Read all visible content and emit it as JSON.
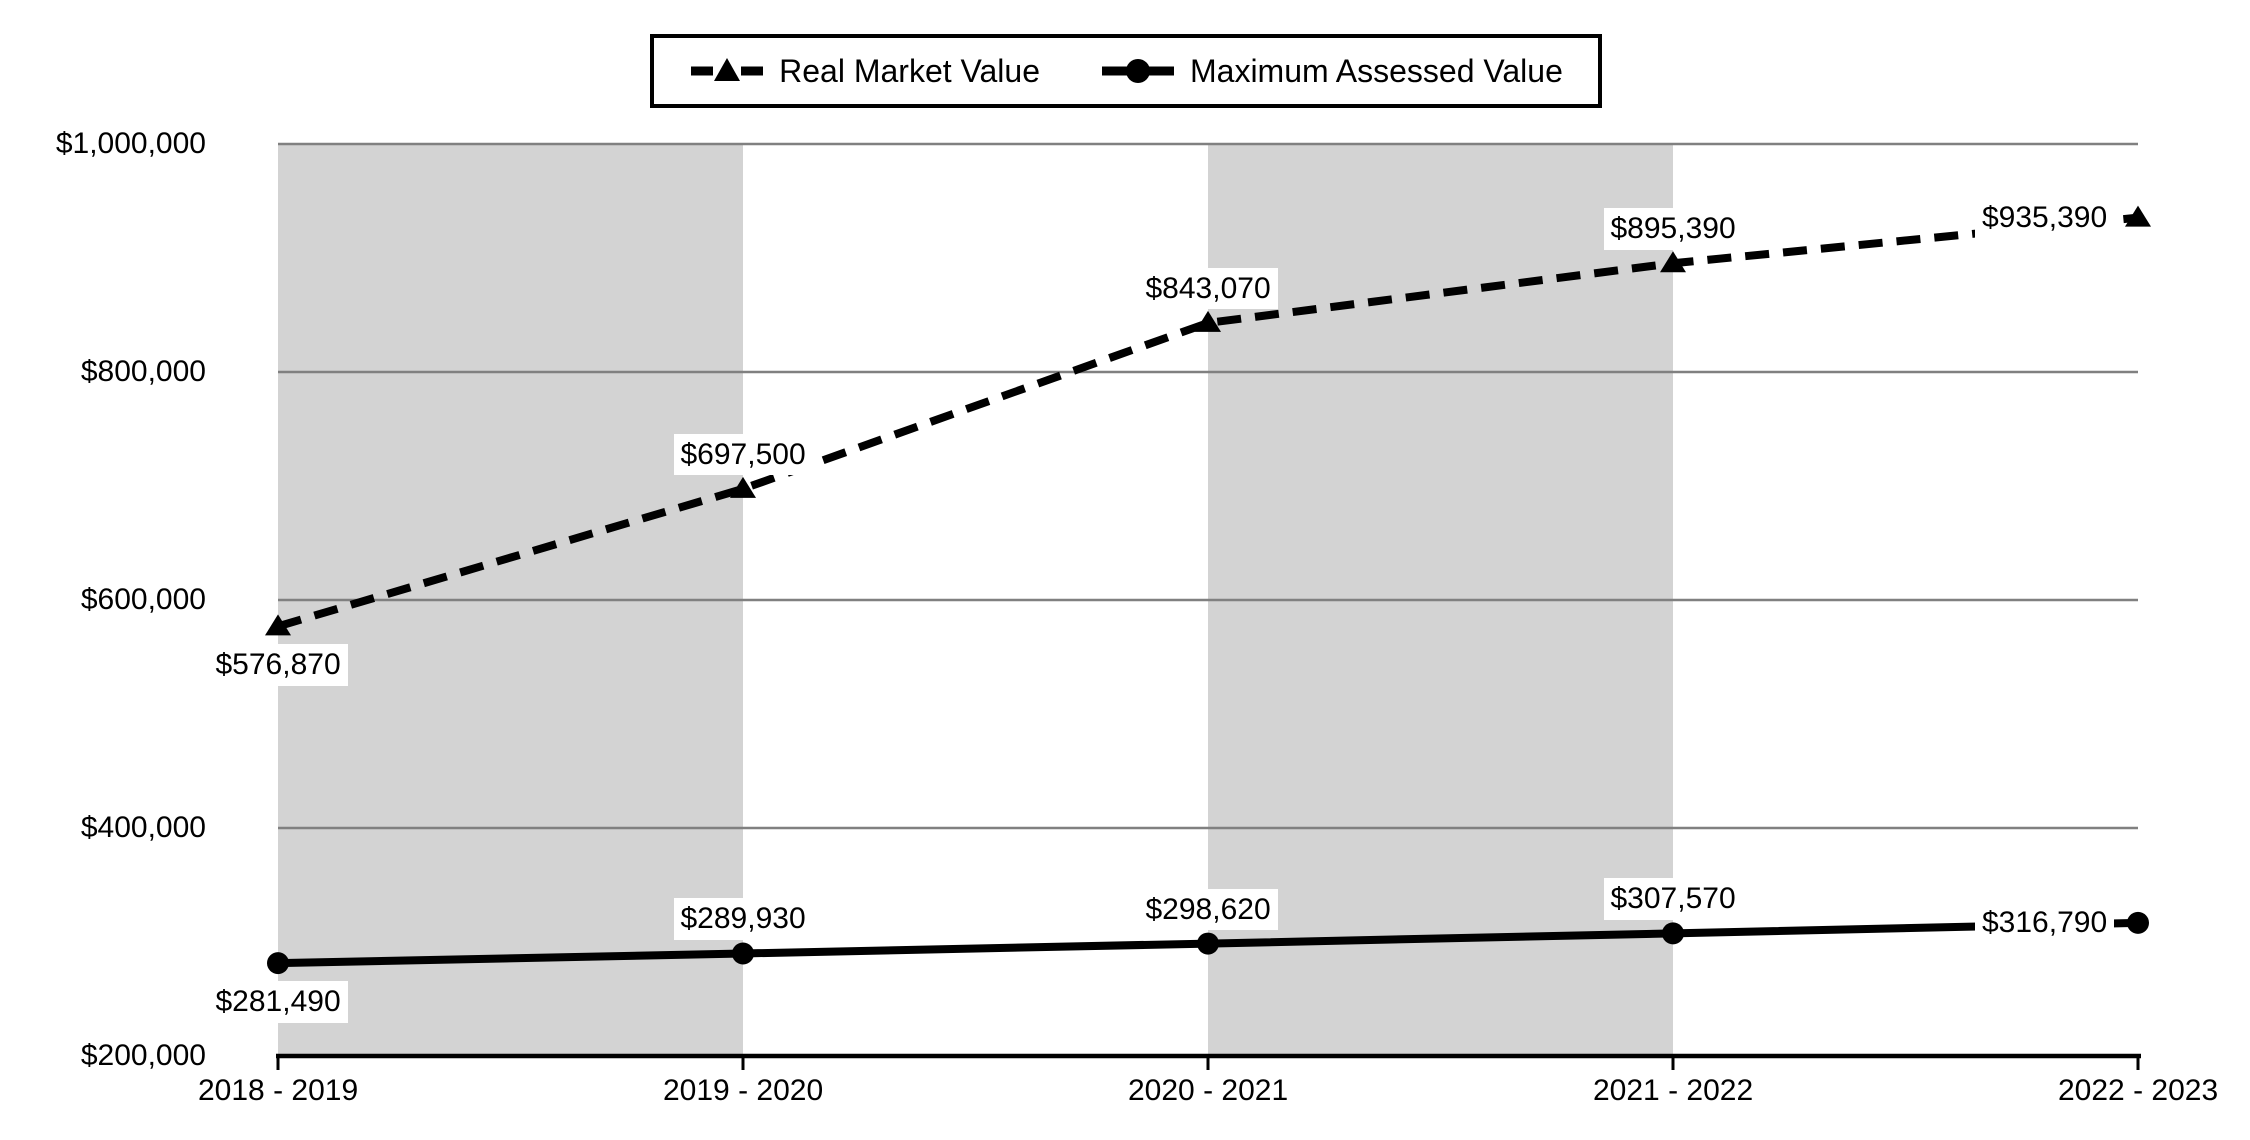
{
  "legend": {
    "position": "top-center",
    "items": [
      {
        "label": "Real Market Value",
        "marker": "triangle-dashed"
      },
      {
        "label": "Maximum Assessed Value",
        "marker": "circle-solid"
      }
    ]
  },
  "chart_data": {
    "type": "line",
    "categories": [
      "2018 - 2019",
      "2019 - 2020",
      "2020 - 2021",
      "2021 - 2022",
      "2022 - 2023"
    ],
    "series": [
      {
        "name": "Real Market Value",
        "style": "dashed",
        "marker": "triangle",
        "values": [
          576870,
          697500,
          843070,
          895390,
          935390
        ],
        "data_labels": [
          "$576,870",
          "$697,500",
          "$843,070",
          "$895,390",
          "$935,390"
        ],
        "label_placement": [
          "below",
          "above",
          "above",
          "above",
          "left"
        ]
      },
      {
        "name": "Maximum Assessed Value",
        "style": "solid",
        "marker": "circle",
        "values": [
          281490,
          289930,
          298620,
          307570,
          316790
        ],
        "data_labels": [
          "$281,490",
          "$289,930",
          "$298,620",
          "$307,570",
          "$316,790"
        ],
        "label_placement": [
          "below",
          "above",
          "above",
          "above",
          "left"
        ]
      }
    ],
    "ylim": [
      200000,
      1000000
    ],
    "yticks": {
      "values": [
        200000,
        400000,
        600000,
        800000,
        1000000
      ],
      "labels": [
        "$200,000",
        "$400,000",
        "$600,000",
        "$800,000",
        "$1,000,000"
      ]
    },
    "bands_between_categories": [
      [
        0,
        1
      ],
      [
        2,
        3
      ]
    ],
    "grid": true,
    "legend_position": "top-center",
    "colors": {
      "band": "#d3d3d3",
      "gridline": "#808080",
      "line": "#000000",
      "text": "#000000",
      "background": "#ffffff",
      "label_bg": "#ffffff"
    }
  }
}
